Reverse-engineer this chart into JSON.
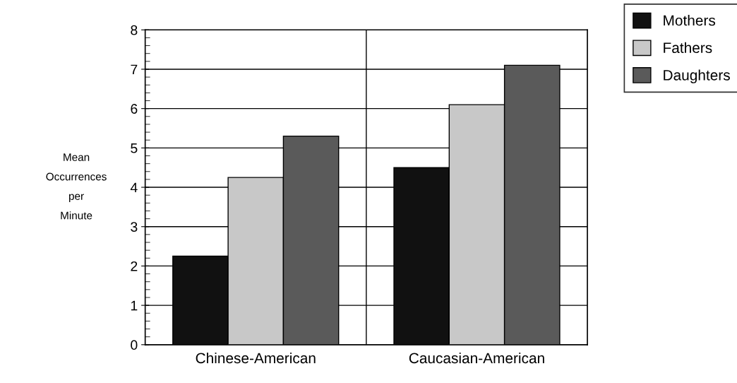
{
  "chart_data": {
    "type": "bar",
    "ylabel": "Mean\nOccurrences\nper\nMinute",
    "categories": [
      "Chinese-American",
      "Caucasian-American"
    ],
    "series": [
      {
        "name": "Mothers",
        "color": "#111111",
        "values": [
          2.25,
          4.5
        ]
      },
      {
        "name": "Fathers",
        "color": "#c8c8c8",
        "values": [
          4.25,
          6.1
        ]
      },
      {
        "name": "Daughters",
        "color": "#5a5a5a",
        "values": [
          5.3,
          7.1
        ]
      }
    ],
    "ylim": [
      0,
      8
    ],
    "yticks": [
      0,
      1,
      2,
      3,
      4,
      5,
      6,
      7,
      8
    ],
    "grid": "y",
    "legend": "top right"
  }
}
